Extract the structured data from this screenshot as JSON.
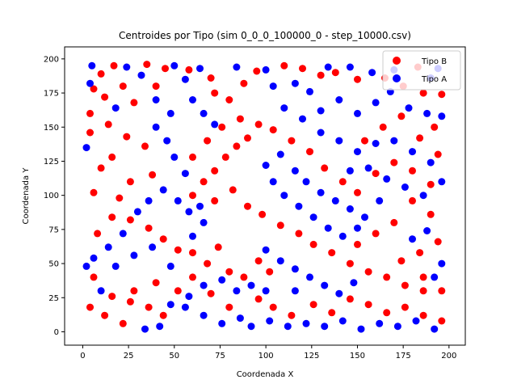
{
  "chart_data": {
    "type": "scatter",
    "title": "Centroides por Tipo (sim 0_0_0_100000_0 - step_10000.csv)",
    "xlabel": "Coordenada X",
    "ylabel": "Coordenada Y",
    "xlim": [
      -9.9,
      208.9
    ],
    "ylim": [
      -9.8,
      208.8
    ],
    "xticks": [
      0,
      25,
      50,
      75,
      100,
      125,
      150,
      175,
      200
    ],
    "yticks": [
      0,
      25,
      50,
      75,
      100,
      125,
      150,
      175,
      200
    ],
    "grid": false,
    "legend_position": "top-right",
    "series": [
      {
        "name": "Tipo B",
        "color": "#ff0000",
        "points": [
          [
            17,
            195
          ],
          [
            35,
            196
          ],
          [
            45,
            193
          ],
          [
            10,
            189
          ],
          [
            6,
            178
          ],
          [
            22,
            180
          ],
          [
            12,
            172
          ],
          [
            28,
            168
          ],
          [
            40,
            180
          ],
          [
            58,
            192
          ],
          [
            70,
            186
          ],
          [
            72,
            175
          ],
          [
            80,
            170
          ],
          [
            88,
            182
          ],
          [
            95,
            191
          ],
          [
            110,
            195
          ],
          [
            120,
            193
          ],
          [
            130,
            188
          ],
          [
            138,
            190
          ],
          [
            150,
            185
          ],
          [
            165,
            186
          ],
          [
            175,
            180
          ],
          [
            183,
            194
          ],
          [
            186,
            175
          ],
          [
            196,
            174
          ],
          [
            192,
            150
          ],
          [
            4,
            160
          ],
          [
            14,
            152
          ],
          [
            24,
            143
          ],
          [
            34,
            136
          ],
          [
            4,
            146
          ],
          [
            16,
            128
          ],
          [
            10,
            120
          ],
          [
            26,
            110
          ],
          [
            38,
            115
          ],
          [
            20,
            98
          ],
          [
            6,
            102
          ],
          [
            8,
            72
          ],
          [
            16,
            84
          ],
          [
            26,
            82
          ],
          [
            36,
            76
          ],
          [
            44,
            68
          ],
          [
            52,
            60
          ],
          [
            60,
            58
          ],
          [
            68,
            50
          ],
          [
            74,
            62
          ],
          [
            80,
            44
          ],
          [
            88,
            40
          ],
          [
            96,
            52
          ],
          [
            102,
            44
          ],
          [
            6,
            40
          ],
          [
            16,
            26
          ],
          [
            26,
            22
          ],
          [
            36,
            18
          ],
          [
            44,
            12
          ],
          [
            12,
            12
          ],
          [
            4,
            18
          ],
          [
            22,
            6
          ],
          [
            28,
            30
          ],
          [
            40,
            36
          ],
          [
            52,
            30
          ],
          [
            60,
            40
          ],
          [
            70,
            28
          ],
          [
            80,
            18
          ],
          [
            96,
            24
          ],
          [
            104,
            18
          ],
          [
            114,
            12
          ],
          [
            126,
            20
          ],
          [
            136,
            14
          ],
          [
            146,
            24
          ],
          [
            156,
            20
          ],
          [
            166,
            14
          ],
          [
            176,
            18
          ],
          [
            186,
            12
          ],
          [
            196,
            8
          ],
          [
            60,
            100
          ],
          [
            66,
            110
          ],
          [
            72,
            118
          ],
          [
            78,
            128
          ],
          [
            84,
            136
          ],
          [
            90,
            142
          ],
          [
            96,
            152
          ],
          [
            86,
            156
          ],
          [
            76,
            150
          ],
          [
            68,
            140
          ],
          [
            60,
            128
          ],
          [
            72,
            96
          ],
          [
            82,
            104
          ],
          [
            90,
            92
          ],
          [
            98,
            86
          ],
          [
            108,
            78
          ],
          [
            118,
            72
          ],
          [
            126,
            64
          ],
          [
            136,
            58
          ],
          [
            146,
            50
          ],
          [
            156,
            44
          ],
          [
            166,
            40
          ],
          [
            176,
            34
          ],
          [
            186,
            30
          ],
          [
            154,
            140
          ],
          [
            164,
            150
          ],
          [
            174,
            158
          ],
          [
            184,
            142
          ],
          [
            194,
            130
          ],
          [
            170,
            124
          ],
          [
            180,
            118
          ],
          [
            190,
            108
          ],
          [
            160,
            116
          ],
          [
            150,
            102
          ],
          [
            142,
            110
          ],
          [
            132,
            120
          ],
          [
            124,
            132
          ],
          [
            114,
            140
          ],
          [
            104,
            148
          ],
          [
            180,
            96
          ],
          [
            190,
            86
          ],
          [
            170,
            80
          ],
          [
            160,
            72
          ],
          [
            150,
            64
          ],
          [
            194,
            66
          ],
          [
            184,
            58
          ],
          [
            174,
            52
          ],
          [
            186,
            40
          ],
          [
            196,
            30
          ]
        ]
      },
      {
        "name": "Tipo A",
        "color": "#0000ff",
        "points": [
          [
            5,
            195
          ],
          [
            24,
            194
          ],
          [
            32,
            188
          ],
          [
            50,
            195
          ],
          [
            56,
            185
          ],
          [
            64,
            193
          ],
          [
            84,
            194
          ],
          [
            100,
            192
          ],
          [
            104,
            180
          ],
          [
            116,
            182
          ],
          [
            124,
            176
          ],
          [
            134,
            194
          ],
          [
            146,
            194
          ],
          [
            158,
            190
          ],
          [
            170,
            192
          ],
          [
            190,
            186
          ],
          [
            194,
            193
          ],
          [
            4,
            182
          ],
          [
            18,
            164
          ],
          [
            2,
            135
          ],
          [
            40,
            150
          ],
          [
            46,
            140
          ],
          [
            50,
            128
          ],
          [
            56,
            116
          ],
          [
            44,
            104
          ],
          [
            36,
            96
          ],
          [
            30,
            88
          ],
          [
            22,
            72
          ],
          [
            14,
            62
          ],
          [
            6,
            54
          ],
          [
            18,
            48
          ],
          [
            28,
            56
          ],
          [
            38,
            62
          ],
          [
            48,
            48
          ],
          [
            56,
            18
          ],
          [
            66,
            12
          ],
          [
            76,
            6
          ],
          [
            86,
            10
          ],
          [
            92,
            4
          ],
          [
            102,
            8
          ],
          [
            112,
            4
          ],
          [
            122,
            6
          ],
          [
            132,
            4
          ],
          [
            142,
            8
          ],
          [
            152,
            2
          ],
          [
            162,
            6
          ],
          [
            172,
            4
          ],
          [
            182,
            8
          ],
          [
            192,
            2
          ],
          [
            100,
            122
          ],
          [
            108,
            130
          ],
          [
            116,
            118
          ],
          [
            122,
            110
          ],
          [
            130,
            102
          ],
          [
            138,
            96
          ],
          [
            146,
            90
          ],
          [
            154,
            84
          ],
          [
            162,
            96
          ],
          [
            104,
            110
          ],
          [
            110,
            100
          ],
          [
            118,
            92
          ],
          [
            126,
            84
          ],
          [
            134,
            76
          ],
          [
            142,
            70
          ],
          [
            150,
            76
          ],
          [
            100,
            60
          ],
          [
            108,
            52
          ],
          [
            116,
            46
          ],
          [
            124,
            40
          ],
          [
            132,
            34
          ],
          [
            140,
            28
          ],
          [
            148,
            36
          ],
          [
            116,
            30
          ],
          [
            130,
            162
          ],
          [
            140,
            170
          ],
          [
            150,
            160
          ],
          [
            160,
            168
          ],
          [
            168,
            176
          ],
          [
            178,
            164
          ],
          [
            188,
            160
          ],
          [
            196,
            158
          ],
          [
            110,
            164
          ],
          [
            120,
            156
          ],
          [
            130,
            146
          ],
          [
            140,
            140
          ],
          [
            150,
            132
          ],
          [
            160,
            138
          ],
          [
            170,
            140
          ],
          [
            180,
            132
          ],
          [
            190,
            124
          ],
          [
            196,
            110
          ],
          [
            186,
            100
          ],
          [
            176,
            106
          ],
          [
            166,
            112
          ],
          [
            156,
            120
          ],
          [
            146,
            118
          ],
          [
            34,
            2
          ],
          [
            42,
            4
          ],
          [
            48,
            20
          ],
          [
            58,
            26
          ],
          [
            66,
            34
          ],
          [
            76,
            38
          ],
          [
            84,
            30
          ],
          [
            92,
            34
          ],
          [
            100,
            30
          ],
          [
            60,
            70
          ],
          [
            66,
            80
          ],
          [
            58,
            88
          ],
          [
            52,
            96
          ],
          [
            64,
            92
          ],
          [
            180,
            68
          ],
          [
            188,
            74
          ],
          [
            196,
            50
          ],
          [
            192,
            40
          ],
          [
            10,
            30
          ],
          [
            2,
            48
          ],
          [
            40,
            170
          ],
          [
            48,
            160
          ],
          [
            60,
            170
          ],
          [
            66,
            160
          ],
          [
            72,
            152
          ]
        ]
      }
    ]
  }
}
